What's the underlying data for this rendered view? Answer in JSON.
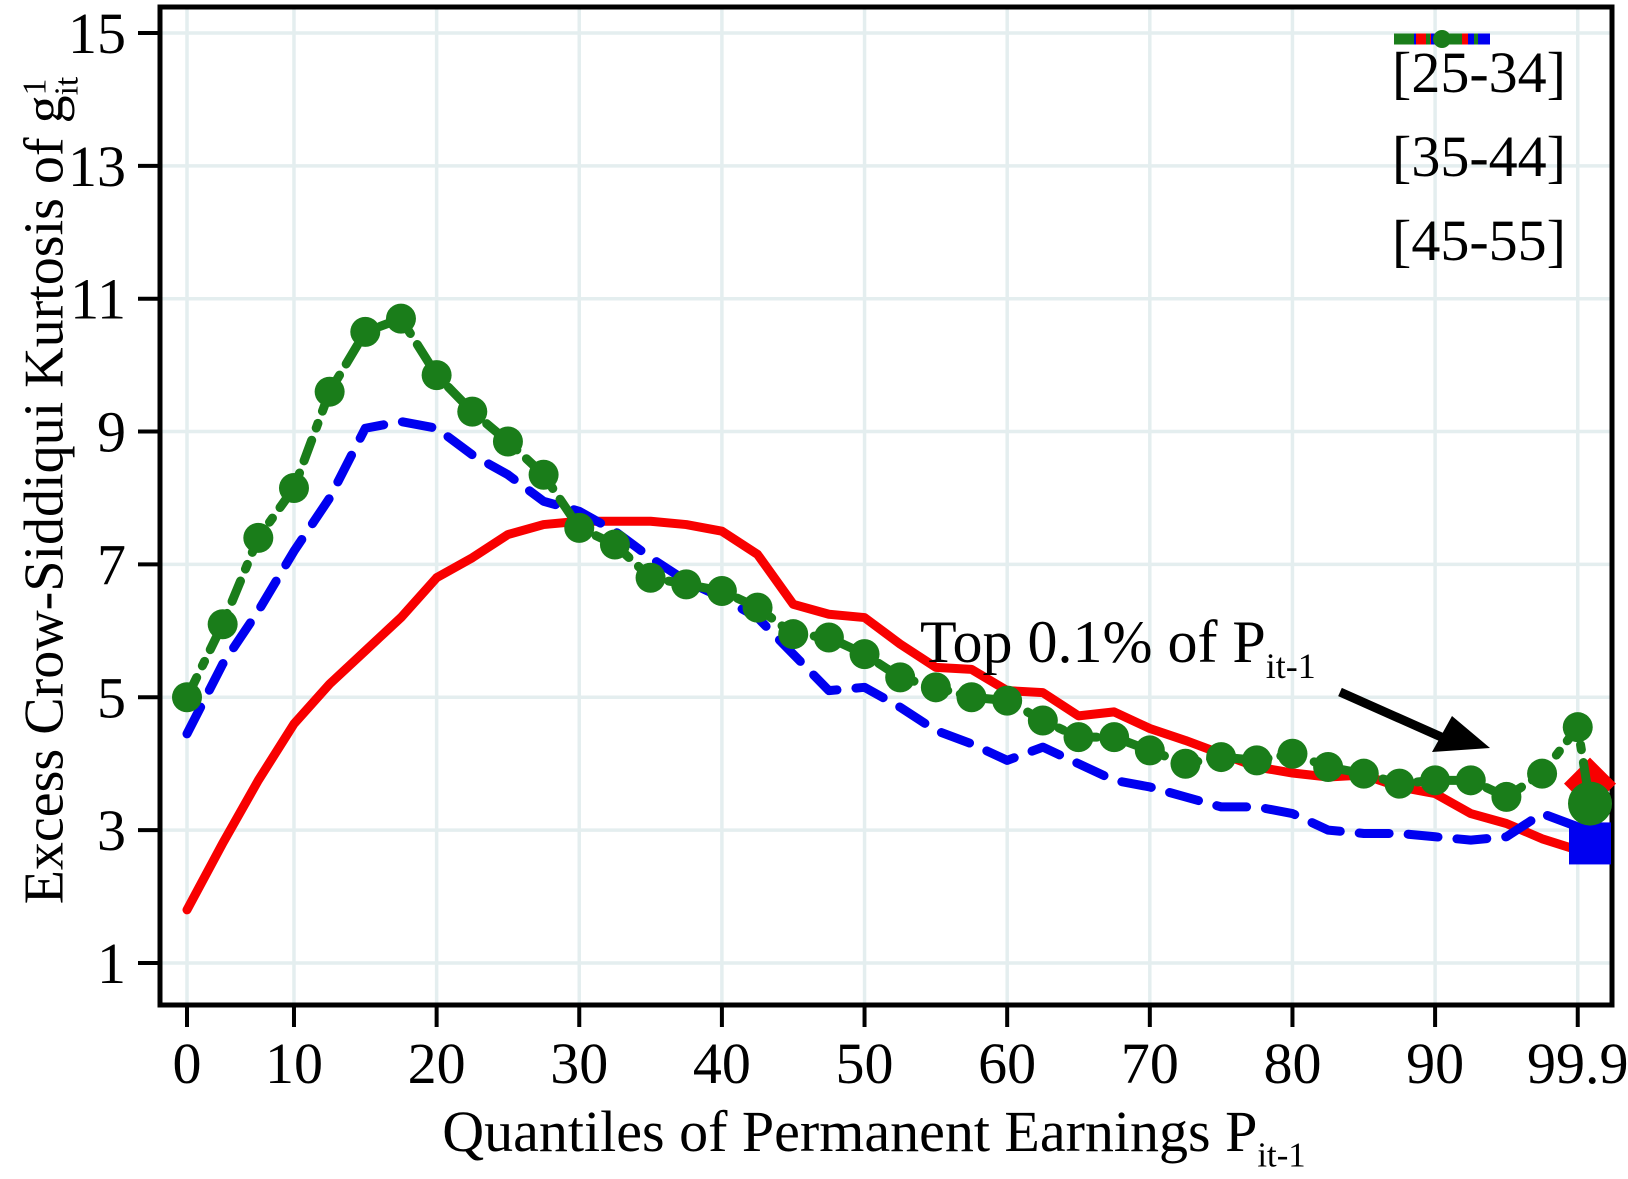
{
  "figure": {
    "y_axis_title": {
      "text": "Excess Crow-Siddiqui Kurtosis of g",
      "sup": "1",
      "sub": "it"
    },
    "x_axis_title": {
      "text": "Quantiles of Permanent Earnings P",
      "sub": "it-1"
    },
    "annotation": {
      "text": "Top 0.1% of P",
      "sub": "it-1"
    },
    "legend": {
      "items": [
        {
          "label": "[25-34]"
        },
        {
          "label": "[35-44]"
        },
        {
          "label": "[45-55]"
        }
      ]
    }
  },
  "chart_data": {
    "type": "line",
    "title": "",
    "xlabel": "Quantiles of Permanent Earnings P_it-1",
    "ylabel": "Excess Crow-Siddiqui Kurtosis of g^1_it",
    "grid": true,
    "legend_position": "top-right",
    "ylim": [
      1,
      15
    ],
    "y_ticks": [
      1,
      3,
      5,
      7,
      9,
      11,
      13,
      15
    ],
    "x_tick_labels": [
      "0",
      "10",
      "20",
      "30",
      "40",
      "50",
      "60",
      "70",
      "80",
      "90",
      "99.9"
    ],
    "x_tick_bins": [
      0,
      3,
      7,
      11,
      15,
      19,
      23,
      27,
      31,
      35,
      39
    ],
    "x_note": "40 quantile bins of P_it-1 plus a separate Top 0.1% point at far right",
    "annotation_text": "Top 0.1% of P_it-1",
    "colors": {
      "grid": "#e4eeef",
      "axis": "#000000"
    },
    "series": [
      {
        "name": "[25-34]",
        "color": "#f80000",
        "style": "solid",
        "marker": "none",
        "final_marker": "diamond",
        "values": [
          1.8,
          2.8,
          3.75,
          4.6,
          5.2,
          5.7,
          6.2,
          6.8,
          7.1,
          7.45,
          7.6,
          7.65,
          7.65,
          7.65,
          7.6,
          7.5,
          7.15,
          6.4,
          6.25,
          6.2,
          5.8,
          5.45,
          5.42,
          5.1,
          5.07,
          4.72,
          4.78,
          4.53,
          4.35,
          4.15,
          3.95,
          3.86,
          3.8,
          3.83,
          3.65,
          3.55,
          3.25,
          3.1,
          2.87,
          2.7
        ],
        "top01_value": 3.7
      },
      {
        "name": "[35-44]",
        "color": "#0000f0",
        "style": "dashed",
        "marker": "none",
        "final_marker": "square",
        "values": [
          4.45,
          5.5,
          6.3,
          7.2,
          8.0,
          9.05,
          9.15,
          9.05,
          8.65,
          8.35,
          7.95,
          7.8,
          7.5,
          7.1,
          6.75,
          6.5,
          6.2,
          5.65,
          5.1,
          5.15,
          4.85,
          4.5,
          4.3,
          4.05,
          4.25,
          4.0,
          3.75,
          3.65,
          3.5,
          3.35,
          3.35,
          3.25,
          3.0,
          2.95,
          2.95,
          2.9,
          2.85,
          2.9,
          3.25,
          3.05
        ],
        "top01_value": 2.8
      },
      {
        "name": "[45-55]",
        "color": "#1a7d1a",
        "style": "dashdot",
        "marker": "circle",
        "final_marker": "circle",
        "values": [
          5.0,
          6.1,
          7.4,
          8.15,
          9.6,
          10.5,
          10.7,
          9.85,
          9.3,
          8.85,
          8.35,
          7.55,
          7.3,
          6.8,
          6.7,
          6.6,
          6.35,
          5.95,
          5.9,
          5.65,
          5.3,
          5.15,
          5.0,
          4.95,
          4.65,
          4.4,
          4.4,
          4.2,
          4.0,
          4.1,
          4.05,
          4.15,
          3.95,
          3.85,
          3.7,
          3.75,
          3.75,
          3.5,
          3.85,
          4.55
        ],
        "top01_value": 3.4
      }
    ]
  }
}
